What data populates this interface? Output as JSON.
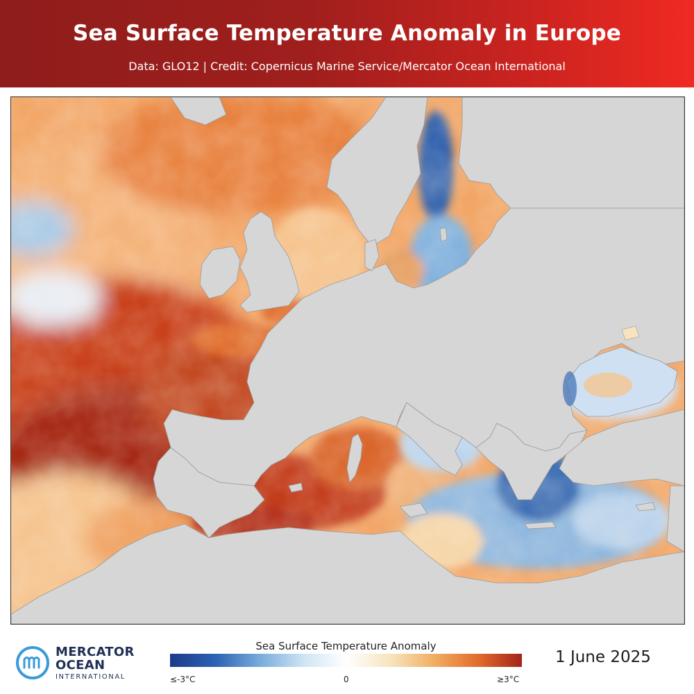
{
  "header": {
    "title": "Sea Surface Temperature Anomaly in Europe",
    "subtitle": "Data: GLO12 | Credit: Copernicus Marine Service/Mercator Ocean International"
  },
  "legend": {
    "title": "Sea Surface Temperature Anomaly",
    "min_label": "≤-3°C",
    "mid_label": "0",
    "max_label": "≥3°C",
    "colors": [
      "#1d3a8a",
      "#2d62b4",
      "#75a9da",
      "#cfe4f3",
      "#ffffff",
      "#f7e3bd",
      "#f2ae63",
      "#e06a2a",
      "#a4221a"
    ]
  },
  "date": "1 June 2025",
  "logo": {
    "line1": "MERCATOR",
    "line2": "OCEAN",
    "line3": "INTERNATIONAL"
  },
  "colors": {
    "header_dark": "#8e1d1b",
    "header_bright": "#f02a22",
    "land": "#d6d6d6",
    "brand_blue": "#1f2f55",
    "logo_accent": "#3b9ad8"
  }
}
